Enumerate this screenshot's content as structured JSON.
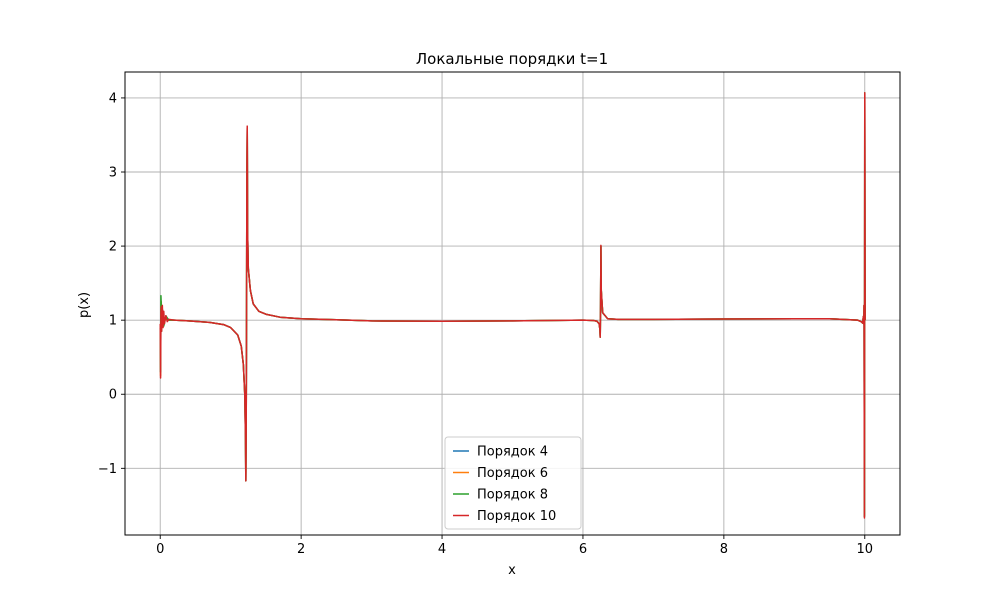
{
  "chart_data": {
    "type": "line",
    "title": "Локальные порядки t=1",
    "xlabel": "x",
    "ylabel": "p(x)",
    "xlim": [
      -0.5,
      10.5
    ],
    "ylim": [
      -1.9,
      4.35
    ],
    "xticks": [
      0,
      2,
      4,
      6,
      8,
      10
    ],
    "xtick_labels": [
      "0",
      "2",
      "4",
      "6",
      "8",
      "10"
    ],
    "yticks": [
      -1,
      0,
      1,
      2,
      3,
      4
    ],
    "ytick_labels": [
      "−1",
      "0",
      "1",
      "2",
      "3",
      "4"
    ],
    "grid": true,
    "legend_position": "bottom-center",
    "series": [
      {
        "name": "Порядок 4",
        "color": "#1f77b4",
        "x": [
          0.0,
          0.005,
          0.01,
          0.015,
          0.02,
          0.03,
          0.05,
          0.08,
          0.12,
          0.2,
          0.4,
          0.7,
          0.9,
          1.0,
          1.1,
          1.15,
          1.18,
          1.2,
          1.21,
          1.215,
          1.22,
          1.225,
          1.23,
          1.235,
          1.24,
          1.25,
          1.28,
          1.32,
          1.4,
          1.5,
          1.7,
          2.0,
          2.5,
          3.0,
          4.0,
          5.0,
          6.0,
          6.15,
          6.2,
          6.23,
          6.24,
          6.245,
          6.25,
          6.255,
          6.26,
          6.28,
          6.35,
          6.5,
          7.0,
          8.0,
          9.0,
          9.5,
          9.9,
          9.95,
          9.97,
          9.98,
          9.985,
          9.99,
          9.995,
          10.0,
          10.005
        ],
        "y": [
          0.9,
          0.3,
          1.15,
          1.2,
          0.95,
          1.1,
          0.95,
          1.05,
          1.0,
          1.0,
          0.99,
          0.97,
          0.94,
          0.9,
          0.8,
          0.65,
          0.4,
          0.0,
          -0.6,
          -1.17,
          -0.5,
          1.0,
          3.0,
          3.6,
          2.2,
          1.7,
          1.4,
          1.22,
          1.12,
          1.08,
          1.04,
          1.02,
          1.005,
          0.99,
          0.985,
          0.99,
          1.0,
          0.995,
          0.985,
          0.95,
          0.88,
          0.77,
          1.2,
          2.0,
          1.4,
          1.1,
          1.02,
          1.01,
          1.01,
          1.015,
          1.02,
          1.02,
          1.0,
          0.98,
          0.96,
          1.05,
          0.95,
          1.2,
          -1.65,
          4.07,
          1.0
        ]
      },
      {
        "name": "Порядок 6",
        "color": "#ff7f0e",
        "x": [
          0.0,
          0.005,
          0.01,
          0.015,
          0.02,
          0.03,
          0.05,
          0.08,
          0.12,
          0.2,
          0.4,
          0.7,
          0.9,
          1.0,
          1.1,
          1.15,
          1.18,
          1.2,
          1.21,
          1.215,
          1.22,
          1.225,
          1.23,
          1.235,
          1.24,
          1.25,
          1.28,
          1.32,
          1.4,
          1.5,
          1.7,
          2.0,
          2.5,
          3.0,
          4.0,
          5.0,
          6.0,
          6.15,
          6.2,
          6.23,
          6.24,
          6.245,
          6.25,
          6.255,
          6.26,
          6.28,
          6.35,
          6.5,
          7.0,
          8.0,
          9.0,
          9.5,
          9.9,
          9.95,
          9.97,
          9.98,
          9.985,
          9.99,
          9.995,
          10.0,
          10.005
        ],
        "y": [
          0.9,
          0.25,
          1.2,
          1.25,
          0.9,
          1.12,
          0.94,
          1.05,
          1.0,
          1.0,
          0.99,
          0.97,
          0.94,
          0.9,
          0.8,
          0.65,
          0.4,
          0.0,
          -0.6,
          -1.17,
          -0.5,
          1.0,
          3.0,
          3.6,
          2.2,
          1.7,
          1.4,
          1.22,
          1.12,
          1.08,
          1.04,
          1.02,
          1.005,
          0.99,
          0.985,
          0.99,
          1.0,
          0.995,
          0.985,
          0.95,
          0.88,
          0.77,
          1.2,
          2.0,
          1.4,
          1.1,
          1.02,
          1.01,
          1.01,
          1.015,
          1.02,
          1.02,
          1.0,
          0.98,
          0.96,
          1.05,
          0.95,
          1.2,
          -1.65,
          4.07,
          1.0
        ]
      },
      {
        "name": "Порядок 8",
        "color": "#2ca02c",
        "x": [
          0.0,
          0.005,
          0.01,
          0.015,
          0.02,
          0.03,
          0.05,
          0.08,
          0.12,
          0.2,
          0.4,
          0.7,
          0.9,
          1.0,
          1.1,
          1.15,
          1.18,
          1.2,
          1.21,
          1.215,
          1.22,
          1.225,
          1.23,
          1.235,
          1.24,
          1.25,
          1.28,
          1.32,
          1.4,
          1.5,
          1.7,
          2.0,
          2.5,
          3.0,
          4.0,
          5.0,
          6.0,
          6.15,
          6.2,
          6.23,
          6.24,
          6.245,
          6.25,
          6.255,
          6.26,
          6.28,
          6.35,
          6.5,
          7.0,
          8.0,
          9.0,
          9.5,
          9.9,
          9.95,
          9.97,
          9.98,
          9.985,
          9.99,
          9.995,
          10.0,
          10.005
        ],
        "y": [
          0.9,
          0.3,
          1.33,
          1.2,
          0.85,
          1.15,
          0.92,
          1.06,
          1.0,
          1.0,
          0.99,
          0.97,
          0.94,
          0.9,
          0.8,
          0.65,
          0.4,
          0.0,
          -0.6,
          -1.17,
          -0.5,
          1.0,
          3.0,
          3.6,
          2.2,
          1.7,
          1.4,
          1.22,
          1.12,
          1.08,
          1.04,
          1.02,
          1.005,
          0.99,
          0.985,
          0.99,
          1.0,
          0.995,
          0.985,
          0.95,
          0.88,
          0.77,
          1.2,
          2.0,
          1.4,
          1.1,
          1.02,
          1.01,
          1.01,
          1.015,
          1.02,
          1.02,
          1.0,
          0.98,
          0.96,
          1.05,
          0.95,
          1.2,
          -1.65,
          4.07,
          1.0
        ]
      },
      {
        "name": "Порядок 10",
        "color": "#d62728",
        "x": [
          0.0,
          0.005,
          0.01,
          0.015,
          0.02,
          0.03,
          0.04,
          0.05,
          0.06,
          0.08,
          0.1,
          0.12,
          0.2,
          0.4,
          0.7,
          0.9,
          1.0,
          1.1,
          1.15,
          1.18,
          1.2,
          1.21,
          1.215,
          1.22,
          1.225,
          1.23,
          1.235,
          1.24,
          1.25,
          1.28,
          1.32,
          1.4,
          1.5,
          1.7,
          2.0,
          2.5,
          3.0,
          4.0,
          5.0,
          6.0,
          6.15,
          6.2,
          6.23,
          6.24,
          6.245,
          6.25,
          6.255,
          6.26,
          6.28,
          6.35,
          6.5,
          7.0,
          8.0,
          9.0,
          9.5,
          9.9,
          9.95,
          9.97,
          9.98,
          9.985,
          9.99,
          9.995,
          10.0,
          10.005
        ],
        "y": [
          0.95,
          0.22,
          1.1,
          1.18,
          0.85,
          1.2,
          0.9,
          1.12,
          0.95,
          1.06,
          0.98,
          1.01,
          1.0,
          0.99,
          0.97,
          0.94,
          0.9,
          0.8,
          0.65,
          0.4,
          0.0,
          -0.6,
          -1.17,
          -0.5,
          1.0,
          3.0,
          3.62,
          2.2,
          1.7,
          1.4,
          1.22,
          1.12,
          1.08,
          1.04,
          1.02,
          1.005,
          0.99,
          0.985,
          0.99,
          1.0,
          0.995,
          0.985,
          0.95,
          0.88,
          0.77,
          1.2,
          2.01,
          1.4,
          1.1,
          1.02,
          1.01,
          1.01,
          1.015,
          1.02,
          1.02,
          1.0,
          0.98,
          0.96,
          1.05,
          0.95,
          1.2,
          -1.67,
          4.07,
          1.0
        ]
      }
    ]
  }
}
